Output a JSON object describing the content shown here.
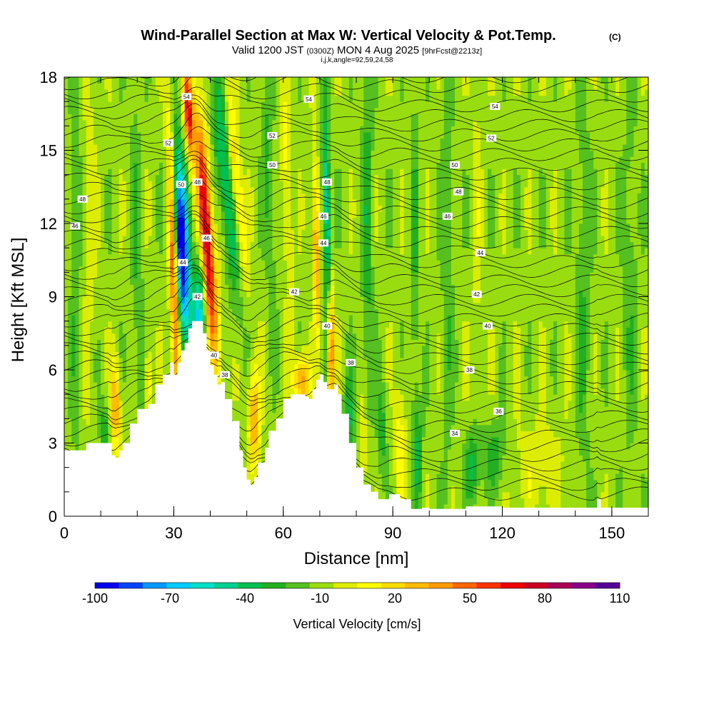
{
  "chart_data": {
    "type": "heatmap",
    "title": "Wind-Parallel Section at Max W: Vertical Velocity & Pot.Temp.",
    "title_mark": "(C)",
    "subtitle": {
      "valid_prefix": "Valid 1200 JST",
      "utc": "(0300Z)",
      "date": "MON 4 Aug 2025",
      "forecast": "[9hrFcst@2213z]"
    },
    "indices": "i,j,k,angle=92,59,24,58",
    "xlabel": "Distance [nm]",
    "ylabel": "Height [Kft MSL]",
    "xlim": [
      0,
      160
    ],
    "ylim": [
      0,
      18
    ],
    "x_ticks": [
      "0",
      "30",
      "60",
      "90",
      "120",
      "150"
    ],
    "y_ticks": [
      "0",
      "3",
      "6",
      "9",
      "12",
      "15",
      "18"
    ],
    "colorbar": {
      "label": "Vertical Velocity [cm/s]",
      "tick_labels": [
        "-100",
        "-70",
        "-40",
        "-10",
        "20",
        "50",
        "80",
        "110"
      ],
      "levels": [
        -100,
        -90,
        -80,
        -70,
        -60,
        -50,
        -40,
        -30,
        -20,
        -10,
        0,
        10,
        20,
        30,
        40,
        50,
        60,
        70,
        80,
        90,
        100,
        110
      ],
      "colors": [
        "#0000ee",
        "#0044ff",
        "#0099ff",
        "#00ccff",
        "#00e0c8",
        "#00d090",
        "#00c050",
        "#22b022",
        "#55c020",
        "#99dd11",
        "#dded00",
        "#ffff00",
        "#ffdd00",
        "#ffbb00",
        "#ff9900",
        "#ff6600",
        "#ff3300",
        "#ee0000",
        "#cc0022",
        "#aa0055",
        "#880088",
        "#550099"
      ]
    },
    "terrain_kft": [
      [
        0,
        2.7
      ],
      [
        3,
        2.7
      ],
      [
        6,
        3.0
      ],
      [
        9,
        3.0
      ],
      [
        12,
        3.0
      ],
      [
        13,
        2.5
      ],
      [
        14,
        2.4
      ],
      [
        15,
        2.7
      ],
      [
        16,
        3.0
      ],
      [
        18,
        3.8
      ],
      [
        20,
        4.4
      ],
      [
        23,
        4.6
      ],
      [
        25,
        5.4
      ],
      [
        27,
        5.8
      ],
      [
        29,
        6.3
      ],
      [
        30,
        5.8
      ],
      [
        31,
        6.3
      ],
      [
        32,
        6.8
      ],
      [
        33,
        7.1
      ],
      [
        34,
        7.7
      ],
      [
        35,
        8.0
      ],
      [
        37,
        8.0
      ],
      [
        38,
        7.5
      ],
      [
        39,
        6.8
      ],
      [
        40,
        6.2
      ],
      [
        41,
        5.8
      ],
      [
        42,
        5.4
      ],
      [
        43,
        5.5
      ],
      [
        44,
        4.8
      ],
      [
        46,
        3.9
      ],
      [
        48,
        2.7
      ],
      [
        49,
        2.0
      ],
      [
        50,
        1.5
      ],
      [
        51,
        1.3
      ],
      [
        52,
        1.6
      ],
      [
        53,
        2.2
      ],
      [
        55,
        2.8
      ],
      [
        56,
        3.5
      ],
      [
        58,
        4.0
      ],
      [
        60,
        4.8
      ],
      [
        62,
        5.0
      ],
      [
        64,
        5.0
      ],
      [
        66,
        4.9
      ],
      [
        67,
        4.8
      ],
      [
        68,
        5.2
      ],
      [
        69,
        5.6
      ],
      [
        70,
        5.8
      ],
      [
        71,
        5.5
      ],
      [
        72,
        5.2
      ],
      [
        74,
        5.4
      ],
      [
        75,
        5.0
      ],
      [
        76,
        4.2
      ],
      [
        78,
        3.0
      ],
      [
        80,
        2.0
      ],
      [
        82,
        1.3
      ],
      [
        84,
        1.0
      ],
      [
        86,
        0.7
      ],
      [
        89,
        0.9
      ],
      [
        92,
        0.7
      ],
      [
        95,
        0.3
      ],
      [
        98,
        0.35
      ],
      [
        100,
        0.3
      ],
      [
        110,
        0.4
      ],
      [
        120,
        0.35
      ],
      [
        130,
        0.35
      ],
      [
        140,
        0.35
      ],
      [
        145,
        0.35
      ],
      [
        146,
        0.7
      ],
      [
        147,
        0.35
      ],
      [
        150,
        0.35
      ],
      [
        155,
        0.35
      ],
      [
        160,
        0.6
      ]
    ],
    "features": [
      {
        "x": 32,
        "z": 11.0,
        "sx": 2.2,
        "sz": 4.0,
        "w": -100,
        "tilt": 0.3
      },
      {
        "x": 30,
        "z": 10.0,
        "sx": 1.2,
        "sz": 6.0,
        "w": 85,
        "tilt": 0.2
      },
      {
        "x": 39,
        "z": 11.5,
        "sx": 1.8,
        "sz": 5.0,
        "w": 95,
        "tilt": 0.45
      },
      {
        "x": 34,
        "z": 16.5,
        "sx": 1.3,
        "sz": 2.0,
        "w": 80,
        "tilt": 0.3
      },
      {
        "x": 37,
        "z": 8.0,
        "sx": 1.6,
        "sz": 2.5,
        "w": -55,
        "tilt": 0.0
      },
      {
        "x": 44,
        "z": 14.0,
        "sx": 2.0,
        "sz": 5.0,
        "w": -40,
        "tilt": 0.6
      },
      {
        "x": 52,
        "z": 4.0,
        "sx": 1.5,
        "sz": 2.0,
        "w": 50,
        "tilt": 0.0
      },
      {
        "x": 47,
        "z": 14.0,
        "sx": 1.5,
        "sz": 4.0,
        "w": 35,
        "tilt": 0.6
      },
      {
        "x": 14,
        "z": 4.5,
        "sx": 1.2,
        "sz": 1.8,
        "w": 50,
        "tilt": 0.0
      },
      {
        "x": 11,
        "z": 3.5,
        "sx": 1.2,
        "sz": 1.2,
        "w": -25,
        "tilt": 0.0
      },
      {
        "x": 23,
        "z": 5.5,
        "sx": 1.0,
        "sz": 1.5,
        "w": 30,
        "tilt": 0.0
      },
      {
        "x": 65,
        "z": 5.6,
        "sx": 2.0,
        "sz": 1.0,
        "w": 55,
        "tilt": 0.0
      },
      {
        "x": 69,
        "z": 11.0,
        "sx": 0.9,
        "sz": 3.5,
        "w": 55,
        "tilt": 0.1
      },
      {
        "x": 73,
        "z": 7.0,
        "sx": 0.8,
        "sz": 3.0,
        "w": 80,
        "tilt": 0.0
      },
      {
        "x": 72,
        "z": 12.0,
        "sx": 1.0,
        "sz": 4.5,
        "w": -55,
        "tilt": 0.15
      },
      {
        "x": 61,
        "z": 13.0,
        "sx": 1.2,
        "sz": 5.0,
        "w": 22,
        "tilt": 0.2
      },
      {
        "x": 56,
        "z": 14.0,
        "sx": 1.5,
        "sz": 5.0,
        "w": -20,
        "tilt": 0.2
      },
      {
        "x": 78,
        "z": 4.0,
        "sx": 1.5,
        "sz": 2.0,
        "w": -25,
        "tilt": 0.0
      },
      {
        "x": 82,
        "z": 2.5,
        "sx": 1.2,
        "sz": 2.0,
        "w": 20,
        "tilt": 0.0
      },
      {
        "x": 87,
        "z": 3.5,
        "sx": 1.2,
        "sz": 2.0,
        "w": -22,
        "tilt": 0.0
      },
      {
        "x": 92,
        "z": 3.0,
        "sx": 1.5,
        "sz": 2.5,
        "w": 22,
        "tilt": 0.0
      },
      {
        "x": 97,
        "z": 2.5,
        "sx": 1.2,
        "sz": 2.0,
        "w": -25,
        "tilt": 0.0
      },
      {
        "x": 112,
        "z": 2.0,
        "sx": 2.0,
        "sz": 1.5,
        "w": -30,
        "tilt": 0.0
      },
      {
        "x": 118,
        "z": 2.5,
        "sx": 3.0,
        "sz": 1.5,
        "w": -20,
        "tilt": 0.0
      },
      {
        "x": 3,
        "z": 11.0,
        "sx": 1.2,
        "sz": 9.0,
        "w": -15,
        "tilt": 0.0
      },
      {
        "x": 7,
        "z": 12.0,
        "sx": 1.5,
        "sz": 9.0,
        "w": 10,
        "tilt": 0.0
      },
      {
        "x": 20,
        "z": 10.0,
        "sx": 1.5,
        "sz": 8.0,
        "w": -15,
        "tilt": 0.1
      },
      {
        "x": 83,
        "z": 12.0,
        "sx": 1.5,
        "sz": 9.0,
        "w": -20,
        "tilt": 0.0
      },
      {
        "x": 96,
        "z": 10.0,
        "sx": 1.2,
        "sz": 9.0,
        "w": -15,
        "tilt": 0.0
      },
      {
        "x": 105,
        "z": 11.0,
        "sx": 1.5,
        "sz": 9.0,
        "w": -15,
        "tilt": 0.0
      },
      {
        "x": 113,
        "z": 12.0,
        "sx": 1.2,
        "sz": 8.0,
        "w": 10,
        "tilt": 0.0
      },
      {
        "x": 142,
        "z": 9.0,
        "sx": 2.0,
        "sz": 9.0,
        "w": -15,
        "tilt": 0.0
      },
      {
        "x": 155,
        "z": 10.0,
        "sx": 2.0,
        "sz": 9.0,
        "w": -12,
        "tilt": 0.0
      },
      {
        "x": 130,
        "z": 2.0,
        "sx": 8.0,
        "sz": 2.0,
        "w": 12,
        "tilt": 0.0
      }
    ],
    "background_w": -5,
    "potential_temperature_labels": [
      {
        "text": "54",
        "x": 33.5,
        "z": 17.2
      },
      {
        "text": "54",
        "x": 67,
        "z": 17.1
      },
      {
        "text": "54",
        "x": 118,
        "z": 16.8
      },
      {
        "text": "52",
        "x": 28.5,
        "z": 15.3
      },
      {
        "text": "52",
        "x": 57,
        "z": 15.6
      },
      {
        "text": "52",
        "x": 117,
        "z": 15.5
      },
      {
        "text": "50",
        "x": 32,
        "z": 13.6
      },
      {
        "text": "50",
        "x": 57,
        "z": 14.4
      },
      {
        "text": "50",
        "x": 107,
        "z": 14.4
      },
      {
        "text": "48",
        "x": 36.5,
        "z": 13.7
      },
      {
        "text": "48",
        "x": 72,
        "z": 13.7
      },
      {
        "text": "48",
        "x": 108,
        "z": 13.3
      },
      {
        "text": "48",
        "x": 5,
        "z": 13.0
      },
      {
        "text": "46",
        "x": 3,
        "z": 11.9
      },
      {
        "text": "46",
        "x": 39,
        "z": 11.4
      },
      {
        "text": "46",
        "x": 71,
        "z": 12.3
      },
      {
        "text": "46",
        "x": 105,
        "z": 12.3
      },
      {
        "text": "44",
        "x": 32.5,
        "z": 10.4
      },
      {
        "text": "44",
        "x": 71,
        "z": 11.2
      },
      {
        "text": "44",
        "x": 114,
        "z": 10.8
      },
      {
        "text": "42",
        "x": 36.5,
        "z": 9.0
      },
      {
        "text": "42",
        "x": 63,
        "z": 9.2
      },
      {
        "text": "42",
        "x": 113,
        "z": 9.1
      },
      {
        "text": "40",
        "x": 72,
        "z": 7.8
      },
      {
        "text": "40",
        "x": 41,
        "z": 6.6
      },
      {
        "text": "40",
        "x": 116,
        "z": 7.8
      },
      {
        "text": "38",
        "x": 44,
        "z": 5.8
      },
      {
        "text": "38",
        "x": 78.5,
        "z": 6.3
      },
      {
        "text": "38",
        "x": 111,
        "z": 6.0
      },
      {
        "text": "36",
        "x": 119,
        "z": 4.3
      },
      {
        "text": "34",
        "x": 107,
        "z": 3.4
      }
    ]
  }
}
